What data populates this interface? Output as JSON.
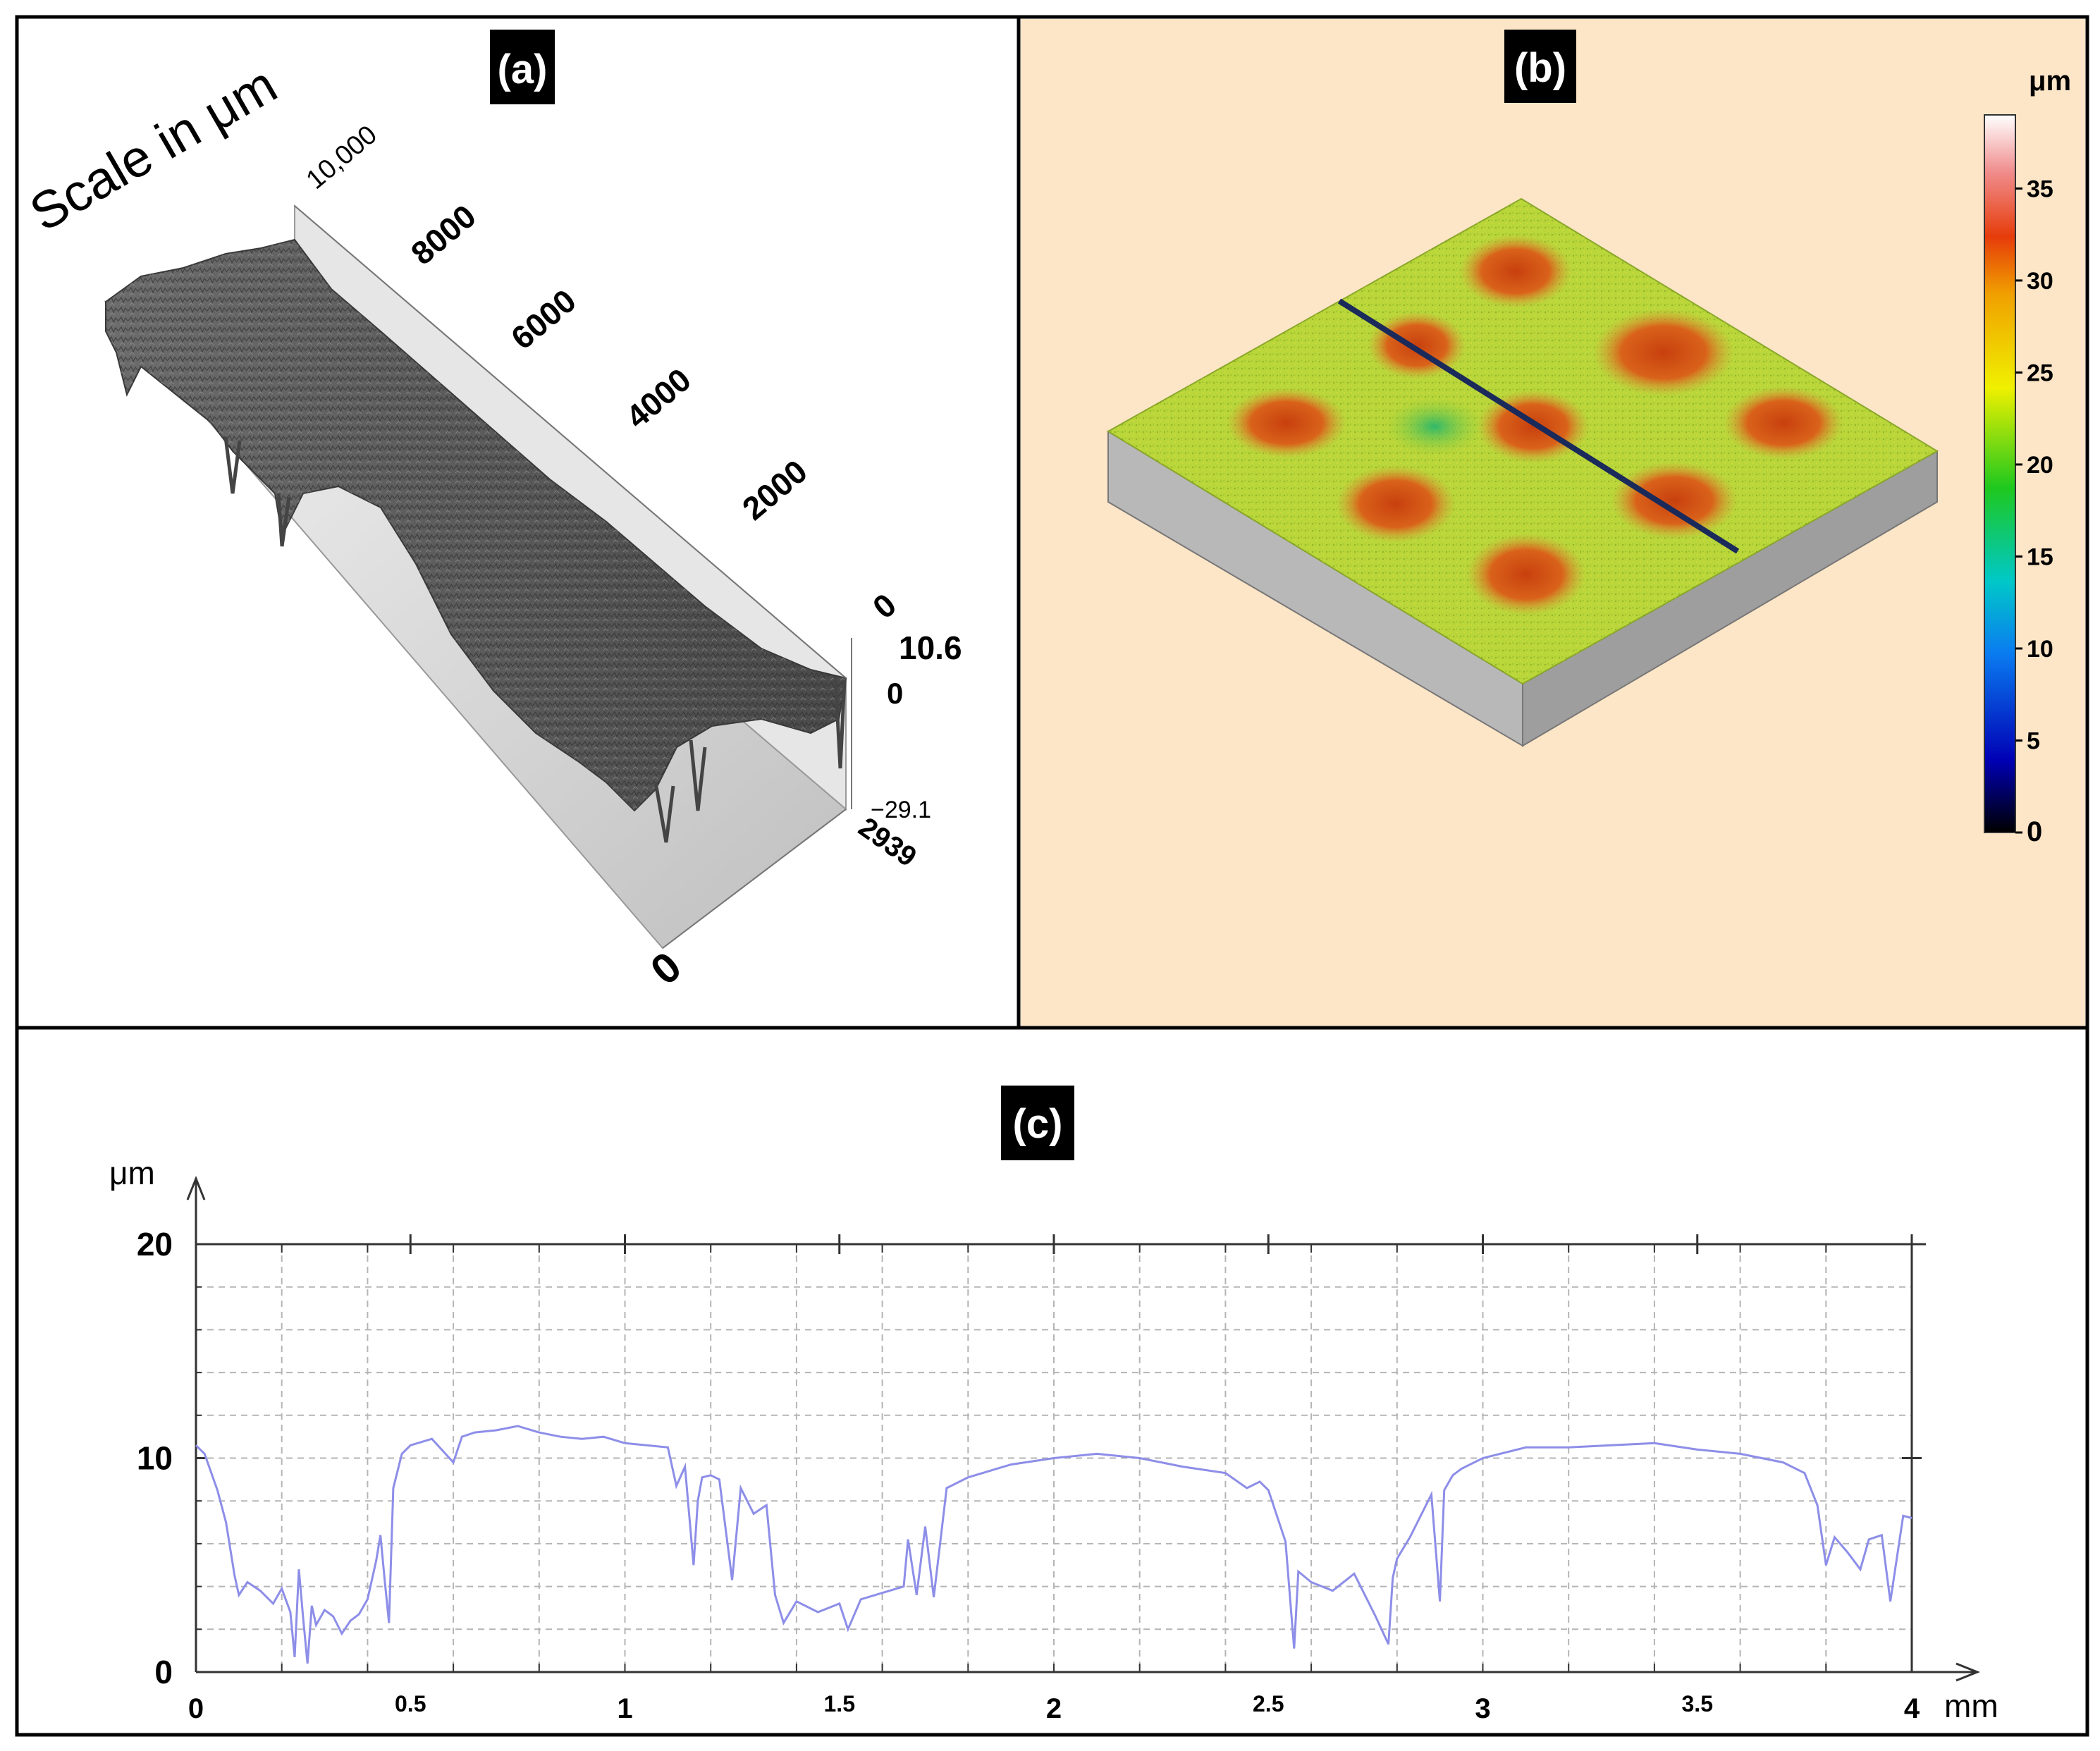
{
  "panels": {
    "a": {
      "tag": "(a)",
      "scale_title": "Scale in μm",
      "length_ticks": [
        "10,000",
        "8000",
        "6000",
        "4000",
        "2000",
        "0"
      ],
      "height_ticks": [
        "10.6",
        "0",
        "−29.1"
      ],
      "width_ticks": [
        "2939",
        "0"
      ]
    },
    "b": {
      "tag": "(b)",
      "colorbar": {
        "unit": "μm",
        "ticks": [
          "35",
          "30",
          "25",
          "20",
          "15",
          "10",
          "5",
          "0"
        ],
        "range": [
          0,
          39
        ]
      },
      "colors": {
        "background": "#fde5c7",
        "low": "#000000",
        "mid": "#00c84a",
        "surface": "#b9d63a",
        "high": "#e04a10",
        "top": "#ffffff"
      }
    },
    "c": {
      "tag": "(c)",
      "line_color": "#8d8ee8"
    }
  },
  "chart_data": {
    "type": "line",
    "xlabel": "mm",
    "ylabel": "μm",
    "xlim": [
      0,
      4
    ],
    "ylim": [
      0,
      20
    ],
    "x_ticks": [
      "0",
      "0.5",
      "1",
      "1.5",
      "2",
      "2.5",
      "3",
      "3.5",
      "4"
    ],
    "y_ticks": [
      "0",
      "10",
      "20"
    ],
    "grid": true,
    "series": [
      {
        "x": [
          0,
          0.02,
          0.05,
          0.07,
          0.09,
          0.1,
          0.12,
          0.15,
          0.18,
          0.2,
          0.22,
          0.23,
          0.24,
          0.25,
          0.26,
          0.27,
          0.28,
          0.3,
          0.32,
          0.34,
          0.36,
          0.38,
          0.4,
          0.42,
          0.43,
          0.44,
          0.45,
          0.46,
          0.48,
          0.5,
          0.55,
          0.6,
          0.62,
          0.65,
          0.7,
          0.75,
          0.8,
          0.85,
          0.9,
          0.95,
          1.0,
          1.05,
          1.1,
          1.12,
          1.14,
          1.16,
          1.17,
          1.18,
          1.2,
          1.22,
          1.25,
          1.27,
          1.3,
          1.33,
          1.35,
          1.37,
          1.4,
          1.45,
          1.5,
          1.52,
          1.55,
          1.6,
          1.65,
          1.66,
          1.68,
          1.7,
          1.72,
          1.75,
          1.8,
          1.9,
          2.0,
          2.1,
          2.2,
          2.3,
          2.4,
          2.45,
          2.48,
          2.5,
          2.54,
          2.56,
          2.57,
          2.6,
          2.65,
          2.7,
          2.75,
          2.78,
          2.79,
          2.8,
          2.83,
          2.86,
          2.88,
          2.9,
          2.91,
          2.93,
          2.95,
          3.0,
          3.1,
          3.2,
          3.3,
          3.4,
          3.5,
          3.6,
          3.7,
          3.75,
          3.78,
          3.8,
          3.82,
          3.85,
          3.88,
          3.9,
          3.93,
          3.95,
          3.98,
          4.0
        ],
        "y": [
          10.6,
          10.2,
          8.5,
          7.0,
          4.5,
          3.6,
          4.2,
          3.8,
          3.2,
          3.9,
          2.8,
          0.7,
          4.8,
          2.5,
          0.4,
          3.1,
          2.2,
          2.9,
          2.6,
          1.8,
          2.4,
          2.7,
          3.4,
          5.2,
          6.4,
          4.3,
          2.3,
          8.6,
          10.2,
          10.6,
          10.9,
          9.8,
          11.0,
          11.2,
          11.3,
          11.5,
          11.2,
          11.0,
          10.9,
          11.0,
          10.7,
          10.6,
          10.5,
          8.7,
          9.6,
          5.0,
          8.0,
          9.1,
          9.2,
          9.0,
          4.3,
          8.6,
          7.4,
          7.8,
          3.6,
          2.3,
          3.3,
          2.8,
          3.2,
          2.0,
          3.4,
          3.7,
          4.0,
          6.2,
          3.6,
          6.8,
          3.5,
          8.6,
          9.1,
          9.7,
          10.0,
          10.2,
          10.0,
          9.6,
          9.3,
          8.6,
          8.9,
          8.5,
          6.1,
          1.1,
          4.7,
          4.2,
          3.8,
          4.6,
          2.6,
          1.3,
          4.4,
          5.3,
          6.3,
          7.5,
          8.3,
          3.3,
          8.5,
          9.2,
          9.5,
          10.0,
          10.5,
          10.5,
          10.6,
          10.7,
          10.4,
          10.2,
          9.8,
          9.3,
          7.8,
          5.0,
          6.3,
          5.6,
          4.8,
          6.2,
          6.4,
          3.3,
          7.3,
          7.2
        ]
      }
    ]
  }
}
